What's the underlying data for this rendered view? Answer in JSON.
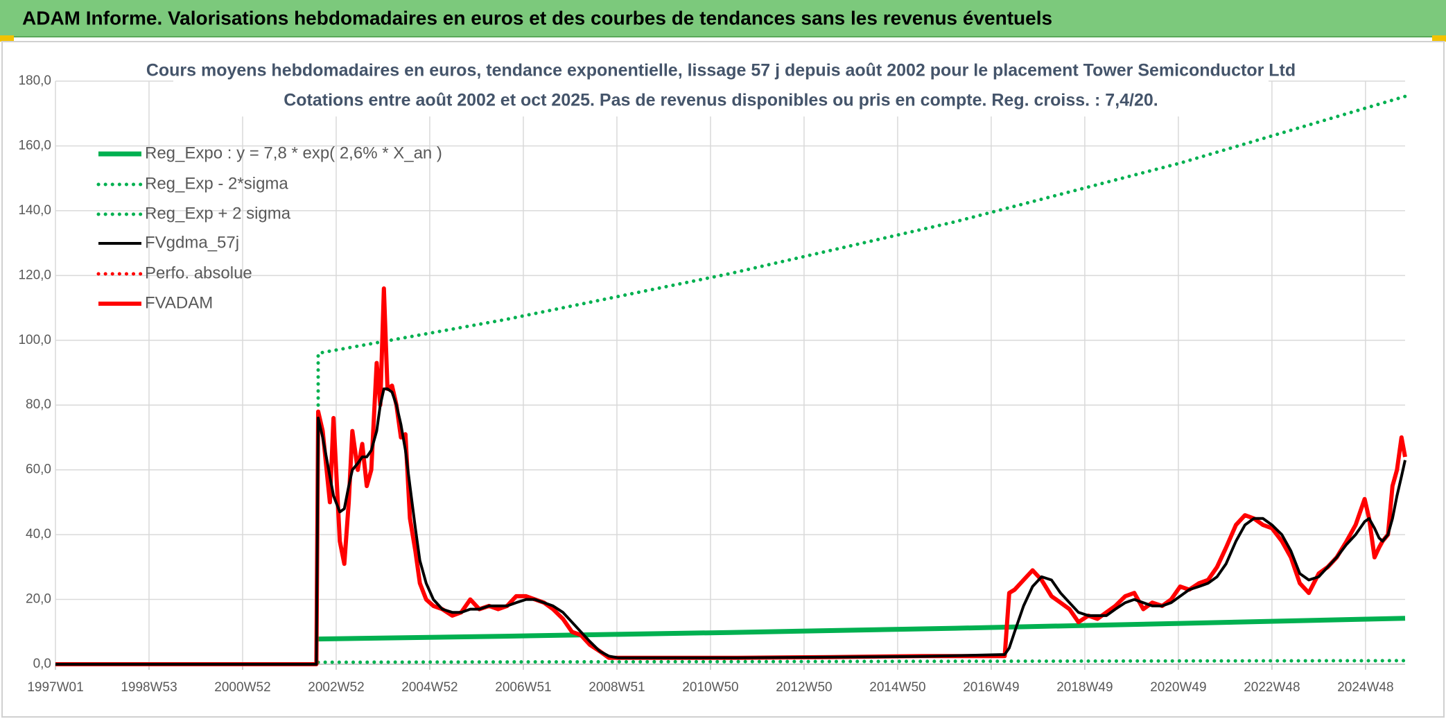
{
  "header": {
    "title": "ADAM Informe. Valorisations hebdomadaires en euros et des courbes de tendances sans les revenus éventuels"
  },
  "chart_data": {
    "type": "line",
    "title": "Cours moyens hebdomadaires en euros, tendance exponentielle, lissage 57 j depuis août 2002 pour le placement Tower Semiconductor Ltd",
    "subtitle": "Cotations entre août 2002 et oct 2025. Pas de revenus disponibles ou pris en compte. Reg. croiss. : 7,4/20.",
    "grid": true,
    "legend": "upper left",
    "xlim": [
      0,
      1500
    ],
    "xticks": [
      {
        "value": 0,
        "label": "1997W01"
      },
      {
        "value": 104,
        "label": "1998W53"
      },
      {
        "value": 208,
        "label": "2000W52"
      },
      {
        "value": 312,
        "label": "2002W52"
      },
      {
        "value": 416,
        "label": "2004W52"
      },
      {
        "value": 520,
        "label": "2006W51"
      },
      {
        "value": 624,
        "label": "2008W51"
      },
      {
        "value": 728,
        "label": "2010W50"
      },
      {
        "value": 832,
        "label": "2012W50"
      },
      {
        "value": 936,
        "label": "2014W50"
      },
      {
        "value": 1040,
        "label": "2016W49"
      },
      {
        "value": 1144,
        "label": "2018W49"
      },
      {
        "value": 1248,
        "label": "2020W49"
      },
      {
        "value": 1352,
        "label": "2022W48"
      },
      {
        "value": 1456,
        "label": "2024W48"
      }
    ],
    "ylim": [
      0,
      180
    ],
    "yticks": [
      {
        "value": 0,
        "label": "0,0"
      },
      {
        "value": 20,
        "label": "20,0"
      },
      {
        "value": 40,
        "label": "40,0"
      },
      {
        "value": 60,
        "label": "60,0"
      },
      {
        "value": 80,
        "label": "80,0"
      },
      {
        "value": 100,
        "label": "100,0"
      },
      {
        "value": 120,
        "label": "120,0"
      },
      {
        "value": 140,
        "label": "140,0"
      },
      {
        "value": 160,
        "label": "160,0"
      },
      {
        "value": 180,
        "label": "180,0"
      }
    ],
    "x": [
      0,
      290,
      292,
      297,
      305,
      309,
      316,
      321,
      326,
      330,
      336,
      341,
      346,
      351,
      357,
      361,
      365,
      369,
      374,
      379,
      384,
      389,
      394,
      400,
      405,
      412,
      420,
      430,
      441,
      451,
      461,
      471,
      482,
      492,
      502,
      512,
      523,
      533,
      543,
      553,
      564,
      574,
      584,
      594,
      605,
      615,
      625,
      758,
      861,
      963,
      1055,
      1060,
      1066,
      1076,
      1086,
      1096,
      1107,
      1117,
      1127,
      1137,
      1148,
      1158,
      1168,
      1178,
      1189,
      1199,
      1209,
      1219,
      1230,
      1240,
      1250,
      1260,
      1271,
      1281,
      1291,
      1301,
      1312,
      1322,
      1332,
      1342,
      1352,
      1363,
      1373,
      1383,
      1393,
      1404,
      1414,
      1424,
      1435,
      1445,
      1455,
      1460,
      1466,
      1471,
      1475,
      1481,
      1486,
      1491,
      1496,
      1500
    ],
    "series": [
      {
        "name": "Reg_Expo : y = 7,8 * exp( 2,6% *  X_an )",
        "color": "#00b050",
        "line_style": "solid",
        "x": [
          292,
          500,
          750,
          1000,
          1250,
          1500
        ],
        "values": [
          7.8,
          8.65,
          9.8,
          11.1,
          12.6,
          14.2
        ]
      },
      {
        "name": "Reg_Exp - 2*sigma",
        "color": "#00b050",
        "line_style": "dotted",
        "x": [
          292,
          500,
          750,
          1000,
          1250,
          1500
        ],
        "values": [
          0.6,
          0.7,
          0.8,
          0.9,
          1.0,
          1.1
        ]
      },
      {
        "name": "Reg_Exp + 2 sigma",
        "color": "#00b050",
        "line_style": "dotted",
        "x": [
          292,
          292,
          500,
          750,
          1000,
          1250,
          1500
        ],
        "values": [
          80,
          96.0,
          106.4,
          120.6,
          136.6,
          154.7,
          175.3
        ]
      },
      {
        "name": "FVgdma_57j",
        "color": "#000000",
        "line_style": "solid",
        "values": [
          0,
          0,
          76,
          70,
          58,
          52,
          47,
          48,
          55,
          60,
          62,
          64,
          64,
          66,
          72,
          80,
          85,
          85,
          84,
          80,
          74,
          66,
          55,
          42,
          32,
          25,
          20,
          17,
          16,
          16,
          17,
          17,
          18,
          18,
          18,
          19,
          20,
          20,
          19,
          18,
          16,
          13,
          10,
          7,
          4,
          2.5,
          2,
          2,
          2.2,
          2.4,
          3,
          5,
          10,
          18,
          24,
          27,
          26,
          22,
          19,
          16,
          15,
          15,
          15,
          17,
          19,
          20,
          19,
          18,
          18,
          19,
          21,
          23,
          24,
          25,
          27,
          31,
          38,
          43,
          45,
          45,
          43,
          40,
          35,
          28,
          26,
          27,
          30,
          33,
          37,
          40,
          44,
          45,
          42,
          39,
          38,
          40,
          45,
          52,
          58,
          63
        ]
      },
      {
        "name": "Perfo. absolue",
        "color": "#ff0000",
        "line_style": "dotted",
        "x": [],
        "values": []
      },
      {
        "name": "FVADAM",
        "color": "#ff0000",
        "line_style": "solid",
        "values": [
          0,
          0,
          78,
          72,
          50,
          76,
          38,
          31,
          50,
          72,
          60,
          68,
          55,
          60,
          93,
          80,
          116,
          85,
          86,
          80,
          70,
          71,
          45,
          35,
          25,
          20,
          18,
          17,
          15,
          16,
          20,
          17,
          18,
          17,
          18,
          21,
          21,
          20,
          19,
          17,
          14,
          10,
          9,
          6,
          4,
          2,
          2,
          2,
          2.2,
          2.5,
          2.5,
          22,
          23,
          26,
          29,
          26,
          21,
          19,
          17,
          13,
          15,
          14,
          16,
          18,
          21,
          22,
          17,
          19,
          18,
          20,
          24,
          23,
          25,
          26,
          30,
          36,
          43,
          46,
          45,
          43,
          42,
          38,
          33,
          25,
          22,
          28,
          30,
          33,
          38,
          43,
          51,
          45,
          33,
          36,
          38,
          40,
          55,
          60,
          70,
          64
        ]
      }
    ]
  }
}
